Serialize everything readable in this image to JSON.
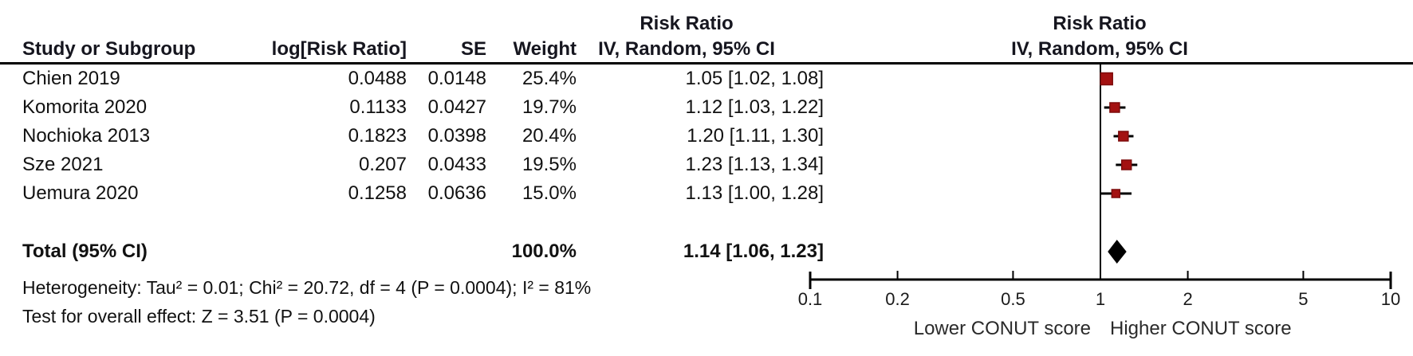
{
  "header": {
    "col_study": "Study or Subgroup",
    "col_log_rr": "log[Risk Ratio]",
    "col_se": "SE",
    "col_weight": "Weight",
    "effect_col_title": "Risk Ratio",
    "effect_col_subtitle": "IV, Random, 95% CI",
    "plot_title": "Risk Ratio",
    "plot_subtitle": "IV, Random, 95% CI"
  },
  "table": {
    "rows": [
      {
        "study": "Chien 2019",
        "log_rr": "0.0488",
        "se": "0.0148",
        "weight": "25.4%",
        "effect": "1.05 [1.02, 1.08]"
      },
      {
        "study": "Komorita 2020",
        "log_rr": "0.1133",
        "se": "0.0427",
        "weight": "19.7%",
        "effect": "1.12 [1.03, 1.22]"
      },
      {
        "study": "Nochioka 2013",
        "log_rr": "0.1823",
        "se": "0.0398",
        "weight": "20.4%",
        "effect": "1.20 [1.11, 1.30]"
      },
      {
        "study": "Sze 2021",
        "log_rr": "0.207",
        "se": "0.0433",
        "weight": "19.5%",
        "effect": "1.23 [1.13, 1.34]"
      },
      {
        "study": "Uemura 2020",
        "log_rr": "0.1258",
        "se": "0.0636",
        "weight": "15.0%",
        "effect": "1.13 [1.00, 1.28]"
      }
    ],
    "total": {
      "label": "Total (95% CI)",
      "weight": "100.0%",
      "effect": "1.14 [1.06, 1.23]"
    }
  },
  "footnotes": {
    "heterogeneity": "Heterogeneity: Tau² = 0.01; Chi² = 20.72, df = 4 (P = 0.0004); I² = 81%",
    "overall_effect": "Test for overall effect: Z = 3.51 (P = 0.0004)"
  },
  "chart_data": {
    "type": "forest",
    "x_scale": "log",
    "axis_range": [
      0.1,
      10
    ],
    "axis_ticks": [
      0.1,
      0.2,
      0.5,
      1,
      2,
      5,
      10
    ],
    "no_effect_value": 1,
    "left_caption": "Lower CONUT score",
    "right_caption": "Higher CONUT score",
    "studies": [
      {
        "name": "Chien 2019",
        "rr": 1.05,
        "ci_low": 1.02,
        "ci_high": 1.08,
        "weight_pct": 25.4
      },
      {
        "name": "Komorita 2020",
        "rr": 1.12,
        "ci_low": 1.03,
        "ci_high": 1.22,
        "weight_pct": 19.7
      },
      {
        "name": "Nochioka 2013",
        "rr": 1.2,
        "ci_low": 1.11,
        "ci_high": 1.3,
        "weight_pct": 20.4
      },
      {
        "name": "Sze 2021",
        "rr": 1.23,
        "ci_low": 1.13,
        "ci_high": 1.34,
        "weight_pct": 19.5
      },
      {
        "name": "Uemura 2020",
        "rr": 1.13,
        "ci_low": 1.0,
        "ci_high": 1.28,
        "weight_pct": 15.0
      }
    ],
    "total": {
      "rr": 1.14,
      "ci_low": 1.06,
      "ci_high": 1.23
    },
    "marker_color": "#a31111",
    "marker_border_color": "#7d0b0b",
    "diamond_color": "#000000",
    "line_color": "#000000"
  }
}
